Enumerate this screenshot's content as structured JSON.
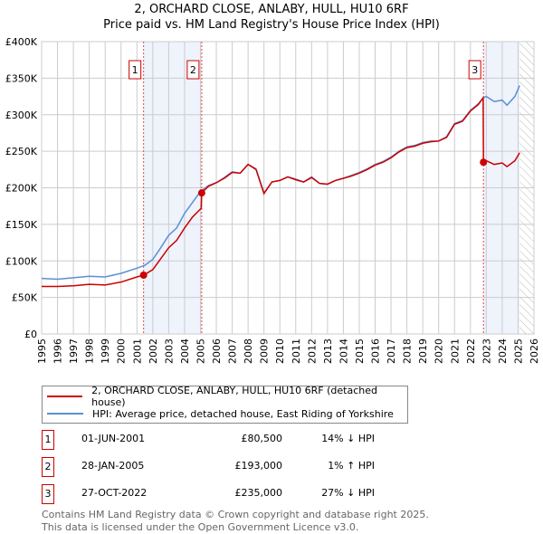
{
  "chart_data": {
    "type": "line",
    "title": "2, ORCHARD CLOSE, ANLABY, HULL, HU10 6RF",
    "subtitle": "Price paid vs. HM Land Registry's House Price Index (HPI)",
    "xlim": [
      1995,
      2026
    ],
    "ylim": [
      0,
      400000
    ],
    "x_ticks": [
      "1995",
      "1996",
      "1997",
      "1998",
      "1999",
      "2000",
      "2001",
      "2002",
      "2003",
      "2004",
      "2005",
      "2006",
      "2007",
      "2008",
      "2009",
      "2010",
      "2011",
      "2012",
      "2013",
      "2014",
      "2015",
      "2016",
      "2017",
      "2018",
      "2019",
      "2020",
      "2021",
      "2022",
      "2023",
      "2024",
      "2025",
      "2026"
    ],
    "y_ticks": [
      {
        "v": 0,
        "label": "£0"
      },
      {
        "v": 50000,
        "label": "£50K"
      },
      {
        "v": 100000,
        "label": "£100K"
      },
      {
        "v": 150000,
        "label": "£150K"
      },
      {
        "v": 200000,
        "label": "£200K"
      },
      {
        "v": 250000,
        "label": "£250K"
      },
      {
        "v": 300000,
        "label": "£300K"
      },
      {
        "v": 350000,
        "label": "£350K"
      },
      {
        "v": 400000,
        "label": "£400K"
      }
    ],
    "grid": true,
    "series": [
      {
        "name": "2, ORCHARD CLOSE, ANLABY, HULL, HU10 6RF (detached house)",
        "color": "#cc0000",
        "x": [
          1995,
          1996,
          1997,
          1998,
          1999,
          2000,
          2001,
          2001.42,
          2002,
          2002.5,
          2003,
          2003.5,
          2004,
          2004.5,
          2005.05,
          2005.08,
          2005.5,
          2006,
          2006.5,
          2007,
          2007.5,
          2008,
          2008.5,
          2009,
          2009.5,
          2010,
          2010.5,
          2011,
          2011.5,
          2012,
          2012.5,
          2013,
          2013.5,
          2014,
          2014.5,
          2015,
          2015.5,
          2016,
          2016.5,
          2017,
          2017.5,
          2018,
          2018.5,
          2019,
          2019.5,
          2020,
          2020.5,
          2021,
          2021.5,
          2022,
          2022.5,
          2022.8,
          2022.82,
          2023,
          2023.5,
          2024,
          2024.3,
          2024.8,
          2025.1
        ],
        "y": [
          65,
          65,
          66,
          68,
          67,
          71,
          78,
          80.5,
          88,
          103,
          118,
          128,
          145,
          160,
          172,
          193,
          202,
          207,
          213,
          221,
          220,
          232,
          225,
          192,
          208,
          210,
          215,
          211,
          208,
          214,
          206,
          205,
          210,
          213,
          216,
          220,
          225,
          231,
          235,
          241,
          249,
          255,
          257,
          261,
          263,
          264,
          269,
          287,
          291,
          305,
          314,
          323,
          235,
          237,
          232,
          234,
          229,
          237,
          248
        ]
      },
      {
        "name": "HPI: Average price, detached house, East Riding of Yorkshire",
        "color": "#5b8fd4",
        "x": [
          1995,
          1996,
          1997,
          1998,
          1999,
          2000,
          2001,
          2001.5,
          2002,
          2002.5,
          2003,
          2003.5,
          2004,
          2004.5,
          2005,
          2005.5,
          2006,
          2006.5,
          2007,
          2007.5,
          2008,
          2008.5,
          2009,
          2009.5,
          2010,
          2010.5,
          2011,
          2011.5,
          2012,
          2012.5,
          2013,
          2013.5,
          2014,
          2014.5,
          2015,
          2015.5,
          2016,
          2016.5,
          2017,
          2017.5,
          2018,
          2018.5,
          2019,
          2019.5,
          2020,
          2020.5,
          2021,
          2021.5,
          2022,
          2022.5,
          2022.8,
          2023,
          2023.5,
          2024,
          2024.3,
          2024.8,
          2025.1
        ],
        "y": [
          76,
          75,
          77,
          79,
          78,
          83,
          90,
          94,
          102,
          118,
          135,
          145,
          165,
          180,
          195,
          203,
          207,
          214,
          222,
          220,
          232,
          226,
          193,
          208,
          210,
          215,
          212,
          208,
          215,
          206,
          205,
          210,
          213,
          217,
          221,
          226,
          232,
          236,
          242,
          250,
          256,
          258,
          262,
          264,
          264,
          270,
          288,
          292,
          306,
          315,
          323,
          325,
          318,
          320,
          313,
          325,
          340
        ]
      }
    ],
    "y_unit": "thousands GBP",
    "sales": [
      {
        "id": "1",
        "x": 2001.42,
        "y": 80.5,
        "date": "01-JUN-2001",
        "price": "£80,500",
        "hpi": "14% ↓ HPI"
      },
      {
        "id": "2",
        "x": 2005.08,
        "y": 193,
        "date": "28-JAN-2005",
        "price": "£193,000",
        "hpi": "1% ↑ HPI"
      },
      {
        "id": "3",
        "x": 2022.82,
        "y": 235,
        "date": "27-OCT-2022",
        "price": "£235,000",
        "hpi": "27% ↓ HPI"
      }
    ],
    "shaded": [
      [
        2001.42,
        2005.08
      ],
      [
        2022.82,
        2025.1
      ]
    ],
    "hatch_from": 2025.1,
    "legend": "bottom"
  },
  "footer": [
    "Contains HM Land Registry data © Crown copyright and database right 2025.",
    "This data is licensed under the Open Government Licence v3.0."
  ]
}
